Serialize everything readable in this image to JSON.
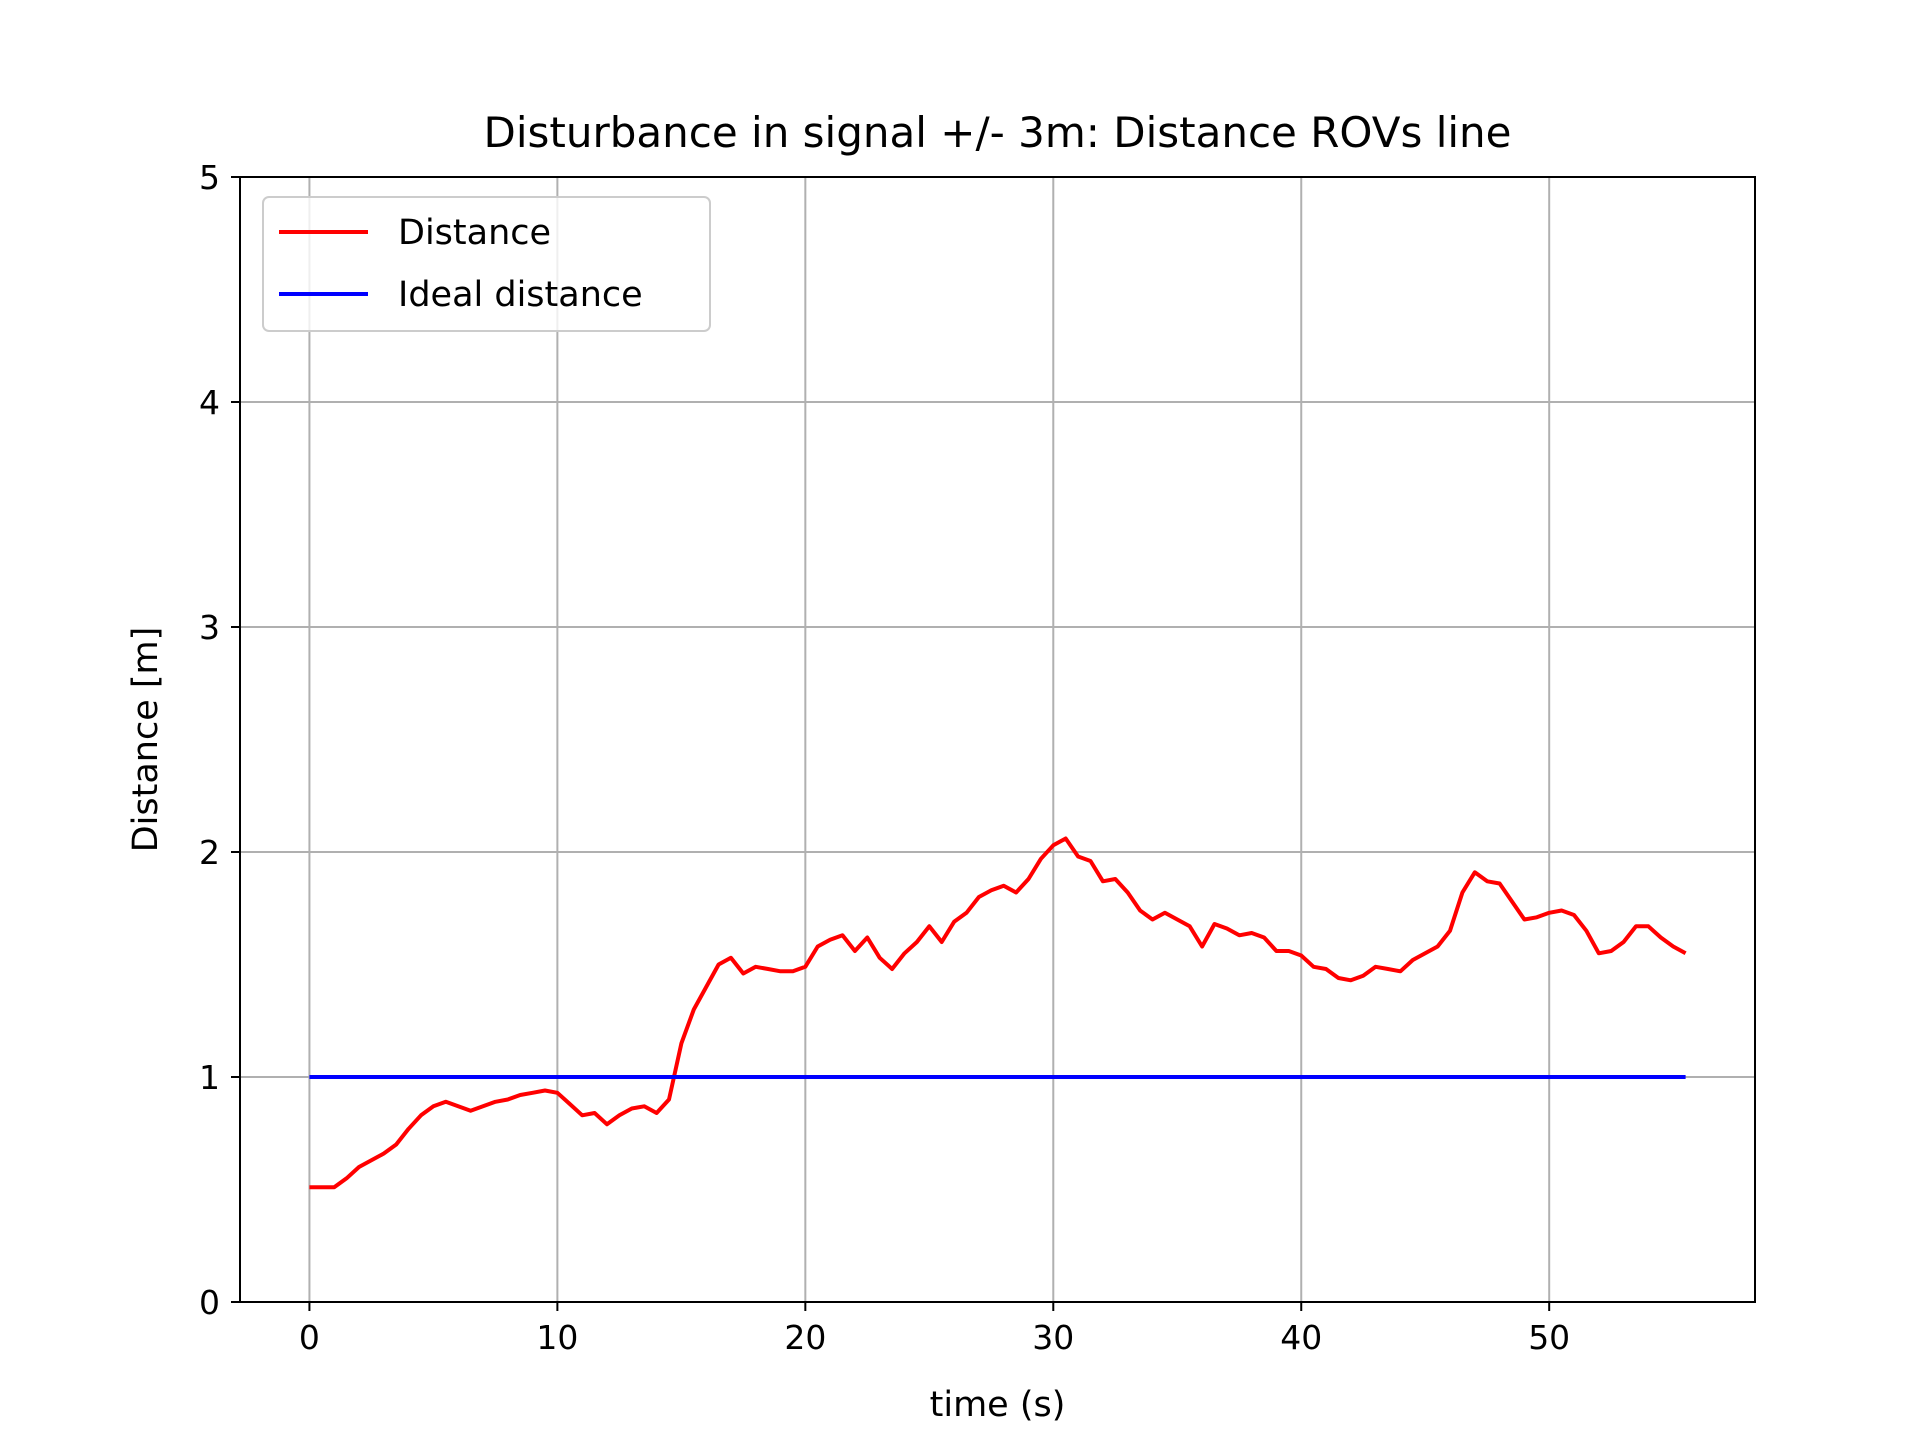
{
  "chart_data": {
    "type": "line",
    "title": "Disturbance in signal +/- 3m: Distance ROVs line",
    "xlabel": "time (s)",
    "ylabel": "Distance [m]",
    "xlim": [
      -2.8,
      58.3
    ],
    "ylim": [
      0,
      5
    ],
    "xticks": [
      0,
      10,
      20,
      30,
      40,
      50
    ],
    "yticks": [
      0,
      1,
      2,
      3,
      4,
      5
    ],
    "xtick_labels": [
      "0",
      "10",
      "20",
      "30",
      "40",
      "50"
    ],
    "ytick_labels": [
      "0",
      "1",
      "2",
      "3",
      "4",
      "5"
    ],
    "grid": true,
    "legend_position": "top-left",
    "series": [
      {
        "name": "Distance",
        "color": "#ff0000",
        "x": [
          0,
          0.5,
          1,
          1.5,
          2,
          2.5,
          3,
          3.5,
          4,
          4.5,
          5,
          5.5,
          6,
          6.5,
          7,
          7.5,
          8,
          8.5,
          9,
          9.5,
          10,
          10.5,
          11,
          11.5,
          12,
          12.5,
          13,
          13.5,
          14,
          14.5,
          15,
          15.5,
          16,
          16.5,
          17,
          17.5,
          18,
          18.5,
          19,
          19.5,
          20,
          20.5,
          21,
          21.5,
          22,
          22.5,
          23,
          23.5,
          24,
          24.5,
          25,
          25.5,
          26,
          26.5,
          27,
          27.5,
          28,
          28.5,
          29,
          29.5,
          30,
          30.5,
          31,
          31.5,
          32,
          32.5,
          33,
          33.5,
          34,
          34.5,
          35,
          35.5,
          36,
          36.5,
          37,
          37.5,
          38,
          38.5,
          39,
          39.5,
          40,
          40.5,
          41,
          41.5,
          42,
          42.5,
          43,
          43.5,
          44,
          44.5,
          45,
          45.5,
          46,
          46.5,
          47,
          47.5,
          48,
          48.5,
          49,
          49.5,
          50,
          50.5,
          51,
          51.5,
          52,
          52.5,
          53,
          53.5,
          54,
          54.5,
          55,
          55.5
        ],
        "y": [
          0.51,
          0.51,
          0.51,
          0.55,
          0.6,
          0.63,
          0.66,
          0.7,
          0.77,
          0.83,
          0.87,
          0.89,
          0.87,
          0.85,
          0.87,
          0.89,
          0.9,
          0.92,
          0.93,
          0.94,
          0.93,
          0.88,
          0.83,
          0.84,
          0.79,
          0.83,
          0.86,
          0.87,
          0.84,
          0.9,
          1.15,
          1.3,
          1.4,
          1.5,
          1.53,
          1.46,
          1.49,
          1.48,
          1.47,
          1.47,
          1.49,
          1.58,
          1.61,
          1.63,
          1.56,
          1.62,
          1.53,
          1.48,
          1.55,
          1.6,
          1.67,
          1.6,
          1.69,
          1.73,
          1.8,
          1.83,
          1.85,
          1.82,
          1.88,
          1.97,
          2.03,
          2.06,
          1.98,
          1.96,
          1.87,
          1.88,
          1.82,
          1.74,
          1.7,
          1.73,
          1.7,
          1.67,
          1.58,
          1.68,
          1.66,
          1.63,
          1.64,
          1.62,
          1.56,
          1.56,
          1.54,
          1.49,
          1.48,
          1.44,
          1.43,
          1.45,
          1.49,
          1.48,
          1.47,
          1.52,
          1.55,
          1.58,
          1.65,
          1.82,
          1.91,
          1.87,
          1.86,
          1.78,
          1.7,
          1.71,
          1.73,
          1.74,
          1.72,
          1.65,
          1.55,
          1.56,
          1.6,
          1.67,
          1.67,
          1.62,
          1.58,
          1.55
        ]
      },
      {
        "name": "Ideal distance",
        "color": "#0000ff",
        "x": [
          0,
          55.5
        ],
        "y": [
          1,
          1
        ]
      }
    ]
  }
}
